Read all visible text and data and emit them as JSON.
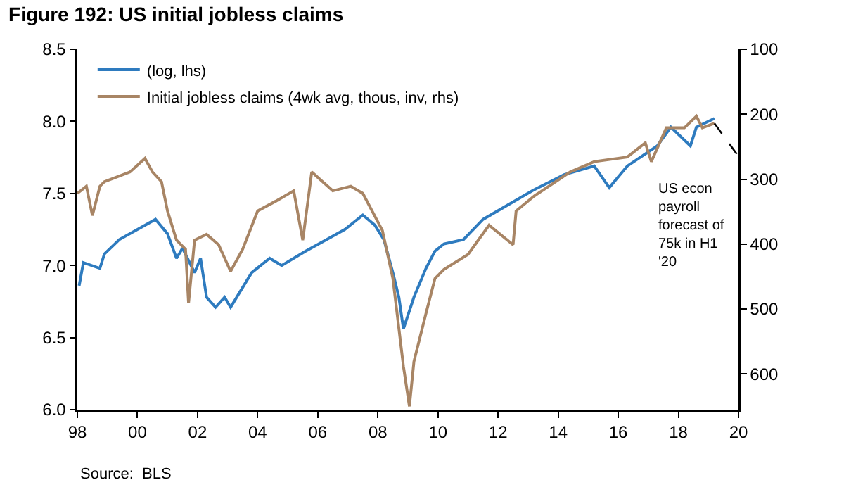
{
  "chart_data": {
    "type": "line",
    "title": "Figure 192: US initial jobless claims",
    "xlim": [
      1998,
      2020
    ],
    "xticks": [
      {
        "value": 1998,
        "label": "98"
      },
      {
        "value": 2000,
        "label": "00"
      },
      {
        "value": 2002,
        "label": "02"
      },
      {
        "value": 2004,
        "label": "04"
      },
      {
        "value": 2006,
        "label": "06"
      },
      {
        "value": 2008,
        "label": "08"
      },
      {
        "value": 2010,
        "label": "10"
      },
      {
        "value": 2012,
        "label": "12"
      },
      {
        "value": 2014,
        "label": "14"
      },
      {
        "value": 2016,
        "label": "16"
      },
      {
        "value": 2018,
        "label": "18"
      },
      {
        "value": 2020,
        "label": "20"
      }
    ],
    "ylim": [
      6.0,
      8.5
    ],
    "yticks": [
      {
        "value": 6.0,
        "label": "6.0"
      },
      {
        "value": 6.5,
        "label": "6.5"
      },
      {
        "value": 7.0,
        "label": "7.0"
      },
      {
        "value": 7.5,
        "label": "7.5"
      },
      {
        "value": 8.0,
        "label": "8.0"
      },
      {
        "value": 8.5,
        "label": "8.5"
      }
    ],
    "y2lim": [
      655,
      100
    ],
    "y2ticks": [
      100,
      200,
      300,
      400,
      500,
      600
    ],
    "legend": "top left",
    "marker": "none",
    "line_style": "solid",
    "series": [
      {
        "name": "(log, lhs)",
        "color": "#2e7bbf",
        "x": [
          1998.06,
          1998.2,
          1998.75,
          1998.9,
          1999.4,
          2000.0,
          2000.6,
          2001.0,
          2001.3,
          2001.5,
          2001.9,
          2002.1,
          2002.3,
          2002.6,
          2002.9,
          2003.1,
          2003.8,
          2004.4,
          2004.8,
          2005.6,
          2006.3,
          2006.9,
          2007.5,
          2007.9,
          2008.2,
          2008.5,
          2008.7,
          2008.85,
          2009.2,
          2009.6,
          2009.9,
          2010.2,
          2010.85,
          2011.5,
          2013.15,
          2014.2,
          2015.2,
          2015.7,
          2016.3,
          2017.3,
          2017.75,
          2018.4,
          2018.6,
          2019.2
        ],
        "values": [
          6.86,
          7.02,
          6.98,
          7.08,
          7.18,
          7.25,
          7.32,
          7.22,
          7.05,
          7.12,
          6.95,
          7.05,
          6.78,
          6.71,
          6.78,
          6.71,
          6.95,
          7.05,
          7.0,
          7.1,
          7.18,
          7.25,
          7.35,
          7.28,
          7.18,
          6.95,
          6.78,
          6.56,
          6.78,
          6.98,
          7.1,
          7.15,
          7.18,
          7.32,
          7.52,
          7.63,
          7.69,
          7.54,
          7.69,
          7.83,
          7.96,
          7.83,
          7.96,
          8.02
        ]
      },
      {
        "name": "Initial jobless claims (4wk avg, thous, inv, rhs)",
        "color": "#a88565",
        "axis": "y2",
        "x": [
          1998.0,
          1998.3,
          1998.5,
          1998.75,
          1998.9,
          1999.75,
          2000.25,
          2000.5,
          2000.8,
          2001.0,
          2001.3,
          2001.6,
          2001.7,
          2001.9,
          2002.3,
          2002.7,
          2003.1,
          2003.5,
          2004.0,
          2004.6,
          2005.2,
          2005.5,
          2005.8,
          2006.5,
          2007.1,
          2007.5,
          2008.15,
          2008.5,
          2008.85,
          2009.05,
          2009.2,
          2009.6,
          2009.9,
          2010.2,
          2011.0,
          2011.7,
          2012.5,
          2012.6,
          2013.2,
          2014.4,
          2015.2,
          2016.3,
          2016.9,
          2017.1,
          2017.6,
          2018.2,
          2018.6,
          2018.8,
          2019.2
        ],
        "values": [
          322,
          311,
          356,
          311,
          304,
          289,
          268,
          289,
          304,
          349,
          394,
          408,
          491,
          394,
          385,
          401,
          442,
          408,
          349,
          334,
          318,
          394,
          289,
          318,
          311,
          322,
          379,
          453,
          588,
          650,
          581,
          507,
          453,
          439,
          416,
          371,
          401,
          349,
          326,
          289,
          273,
          266,
          244,
          273,
          221,
          221,
          203,
          221,
          214
        ]
      },
      {
        "type": "line",
        "color": "#000000",
        "axis": "y2",
        "line_style": "dashed",
        "x": [
          2019.2,
          2020
        ],
        "values": [
          214,
          265
        ]
      }
    ],
    "annotations": [
      "US econ payroll forecast of 75k in H1 '20",
      "Source:  BLS"
    ]
  }
}
